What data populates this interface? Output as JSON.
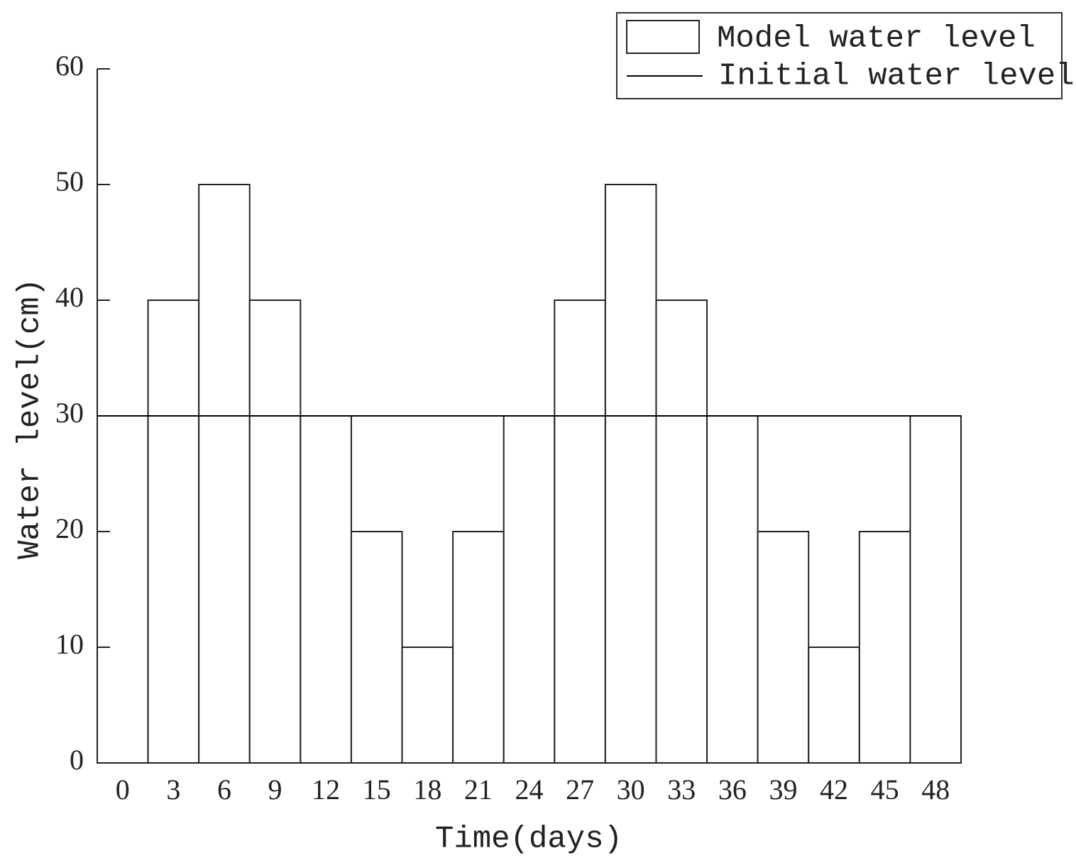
{
  "chart_data": {
    "type": "bar",
    "x_label": "Time(days)",
    "y_label": "Water level(cm)",
    "categories": [
      0,
      3,
      6,
      9,
      12,
      15,
      18,
      21,
      24,
      27,
      30,
      33,
      36,
      39,
      42,
      45,
      48
    ],
    "series": [
      {
        "name": "Model water level",
        "color": "#ffffff",
        "values": [
          30,
          40,
          50,
          40,
          30,
          20,
          10,
          20,
          30,
          40,
          50,
          40,
          30,
          20,
          10,
          20,
          30
        ]
      }
    ],
    "reference_lines": [
      {
        "name": "Initial water level",
        "value": 30,
        "color": "#000000"
      }
    ],
    "ylim": [
      0,
      60
    ],
    "yticks": [
      0,
      10,
      20,
      30,
      40,
      50,
      60
    ],
    "legend": "top-right"
  }
}
